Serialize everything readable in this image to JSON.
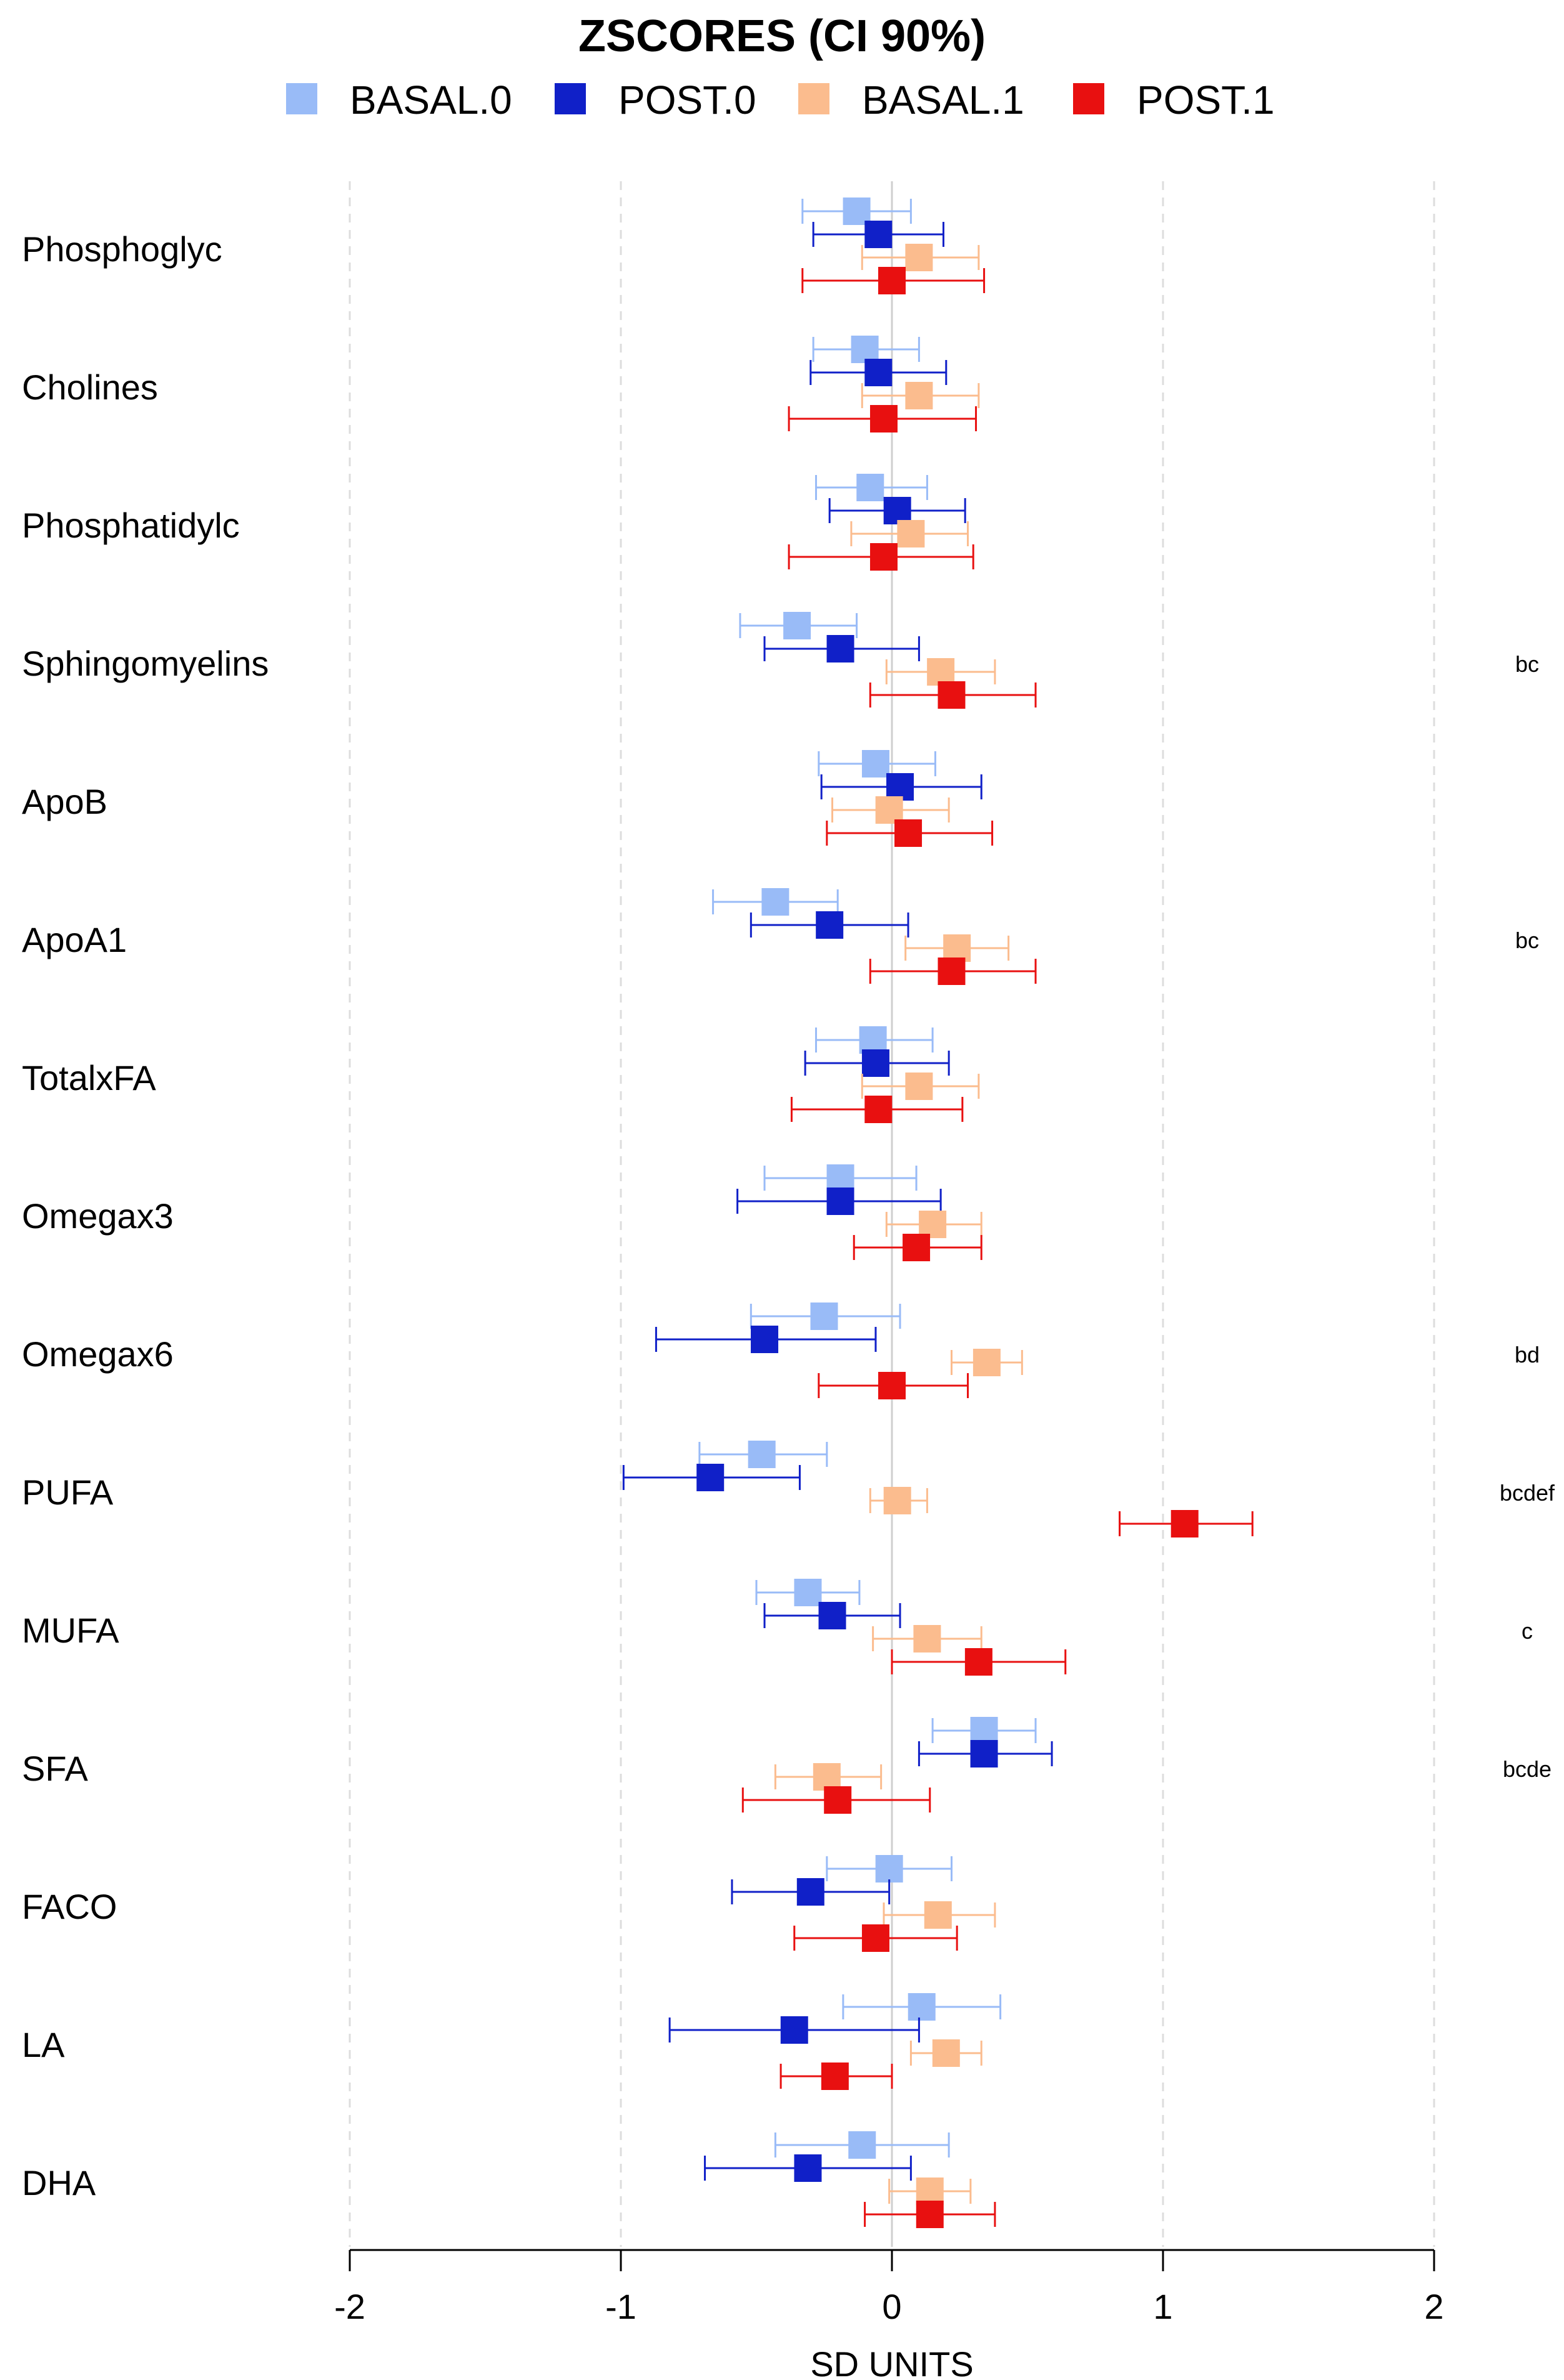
{
  "chart_data": {
    "type": "forest",
    "title": "ZSCORES (CI 90%)",
    "xlabel": "SD UNITS",
    "xlim": [
      -2,
      2
    ],
    "xticks": [
      -2,
      -1,
      0,
      1,
      2
    ],
    "grid": "vertical dashed",
    "legend_position": "top",
    "series": [
      {
        "name": "BASAL.0",
        "color": "#99BBF7"
      },
      {
        "name": "POST.0",
        "color": "#1020C8"
      },
      {
        "name": "BASAL.1",
        "color": "#FBBC8E"
      },
      {
        "name": "POST.1",
        "color": "#E81010"
      }
    ],
    "rows": [
      {
        "label": "Phosphoglyc",
        "annotation": "",
        "values": [
          {
            "est": -0.13,
            "lo": -0.33,
            "hi": 0.07
          },
          {
            "est": -0.05,
            "lo": -0.29,
            "hi": 0.19
          },
          {
            "est": 0.1,
            "lo": -0.11,
            "hi": 0.32
          },
          {
            "est": 0.0,
            "lo": -0.33,
            "hi": 0.34
          }
        ]
      },
      {
        "label": "Cholines",
        "annotation": "",
        "values": [
          {
            "est": -0.1,
            "lo": -0.29,
            "hi": 0.1
          },
          {
            "est": -0.05,
            "lo": -0.3,
            "hi": 0.2
          },
          {
            "est": 0.1,
            "lo": -0.11,
            "hi": 0.32
          },
          {
            "est": -0.03,
            "lo": -0.38,
            "hi": 0.31
          }
        ]
      },
      {
        "label": "Phosphatidylc",
        "annotation": "",
        "values": [
          {
            "est": -0.08,
            "lo": -0.28,
            "hi": 0.13
          },
          {
            "est": 0.02,
            "lo": -0.23,
            "hi": 0.27
          },
          {
            "est": 0.07,
            "lo": -0.15,
            "hi": 0.28
          },
          {
            "est": -0.03,
            "lo": -0.38,
            "hi": 0.3
          }
        ]
      },
      {
        "label": "Sphingomyelins",
        "annotation": "bc",
        "values": [
          {
            "est": -0.35,
            "lo": -0.56,
            "hi": -0.13
          },
          {
            "est": -0.19,
            "lo": -0.47,
            "hi": 0.1
          },
          {
            "est": 0.18,
            "lo": -0.02,
            "hi": 0.38
          },
          {
            "est": 0.22,
            "lo": -0.08,
            "hi": 0.53
          }
        ]
      },
      {
        "label": "ApoB",
        "annotation": "",
        "values": [
          {
            "est": -0.06,
            "lo": -0.27,
            "hi": 0.16
          },
          {
            "est": 0.03,
            "lo": -0.26,
            "hi": 0.33
          },
          {
            "est": -0.01,
            "lo": -0.22,
            "hi": 0.21
          },
          {
            "est": 0.06,
            "lo": -0.24,
            "hi": 0.37
          }
        ]
      },
      {
        "label": "ApoA1",
        "annotation": "bc",
        "values": [
          {
            "est": -0.43,
            "lo": -0.66,
            "hi": -0.2
          },
          {
            "est": -0.23,
            "lo": -0.52,
            "hi": 0.06
          },
          {
            "est": 0.24,
            "lo": 0.05,
            "hi": 0.43
          },
          {
            "est": 0.22,
            "lo": -0.08,
            "hi": 0.53
          }
        ]
      },
      {
        "label": "TotalxFA",
        "annotation": "",
        "values": [
          {
            "est": -0.07,
            "lo": -0.28,
            "hi": 0.15
          },
          {
            "est": -0.06,
            "lo": -0.32,
            "hi": 0.21
          },
          {
            "est": 0.1,
            "lo": -0.11,
            "hi": 0.32
          },
          {
            "est": -0.05,
            "lo": -0.37,
            "hi": 0.26
          }
        ]
      },
      {
        "label": "Omegax3",
        "annotation": "",
        "values": [
          {
            "est": -0.19,
            "lo": -0.47,
            "hi": 0.09
          },
          {
            "est": -0.19,
            "lo": -0.57,
            "hi": 0.18
          },
          {
            "est": 0.15,
            "lo": -0.02,
            "hi": 0.33
          },
          {
            "est": 0.09,
            "lo": -0.14,
            "hi": 0.33
          }
        ]
      },
      {
        "label": "Omegax6",
        "annotation": "bd",
        "values": [
          {
            "est": -0.25,
            "lo": -0.52,
            "hi": 0.03
          },
          {
            "est": -0.47,
            "lo": -0.87,
            "hi": -0.06
          },
          {
            "est": 0.35,
            "lo": 0.22,
            "hi": 0.48
          },
          {
            "est": 0.0,
            "lo": -0.27,
            "hi": 0.28
          }
        ]
      },
      {
        "label": "PUFA",
        "annotation": "bcdef",
        "values": [
          {
            "est": -0.48,
            "lo": -0.71,
            "hi": -0.24
          },
          {
            "est": -0.67,
            "lo": -0.99,
            "hi": -0.34
          },
          {
            "est": 0.02,
            "lo": -0.08,
            "hi": 0.13
          },
          {
            "est": 1.08,
            "lo": 0.84,
            "hi": 1.33
          }
        ]
      },
      {
        "label": "MUFA",
        "annotation": "c",
        "values": [
          {
            "est": -0.31,
            "lo": -0.5,
            "hi": -0.12
          },
          {
            "est": -0.22,
            "lo": -0.47,
            "hi": 0.03
          },
          {
            "est": 0.13,
            "lo": -0.07,
            "hi": 0.33
          },
          {
            "est": 0.32,
            "lo": 0.0,
            "hi": 0.64
          }
        ]
      },
      {
        "label": "SFA",
        "annotation": "bcde",
        "values": [
          {
            "est": 0.34,
            "lo": 0.15,
            "hi": 0.53
          },
          {
            "est": 0.34,
            "lo": 0.1,
            "hi": 0.59
          },
          {
            "est": -0.24,
            "lo": -0.43,
            "hi": -0.04
          },
          {
            "est": -0.2,
            "lo": -0.55,
            "hi": 0.14
          }
        ]
      },
      {
        "label": "FACO",
        "annotation": "",
        "values": [
          {
            "est": -0.01,
            "lo": -0.24,
            "hi": 0.22
          },
          {
            "est": -0.3,
            "lo": -0.59,
            "hi": -0.01
          },
          {
            "est": 0.17,
            "lo": -0.03,
            "hi": 0.38
          },
          {
            "est": -0.06,
            "lo": -0.36,
            "hi": 0.24
          }
        ]
      },
      {
        "label": "LA",
        "annotation": "",
        "values": [
          {
            "est": 0.11,
            "lo": -0.18,
            "hi": 0.4
          },
          {
            "est": -0.36,
            "lo": -0.82,
            "hi": 0.1
          },
          {
            "est": 0.2,
            "lo": 0.07,
            "hi": 0.33
          },
          {
            "est": -0.21,
            "lo": -0.41,
            "hi": 0.0
          }
        ]
      },
      {
        "label": "DHA",
        "annotation": "",
        "values": [
          {
            "est": -0.11,
            "lo": -0.43,
            "hi": 0.21
          },
          {
            "est": -0.31,
            "lo": -0.69,
            "hi": 0.07
          },
          {
            "est": 0.14,
            "lo": -0.01,
            "hi": 0.29
          },
          {
            "est": 0.14,
            "lo": -0.1,
            "hi": 0.38
          }
        ]
      }
    ]
  }
}
